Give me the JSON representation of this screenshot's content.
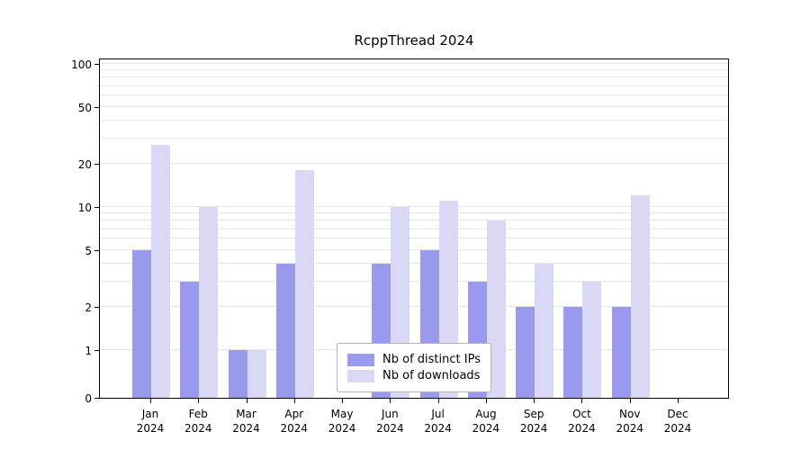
{
  "title": "RcppThread 2024",
  "chart_data": {
    "type": "bar",
    "title": "RcppThread 2024",
    "year_label": "2024",
    "categories": [
      "Jan",
      "Feb",
      "Mar",
      "Apr",
      "May",
      "Jun",
      "Jul",
      "Aug",
      "Sep",
      "Oct",
      "Nov",
      "Dec"
    ],
    "series": [
      {
        "name": "Nb of distinct IPs",
        "color": "#9999ee",
        "values": [
          5,
          3,
          1,
          4,
          0,
          4,
          5,
          3,
          2,
          2,
          2,
          0
        ]
      },
      {
        "name": "Nb of downloads",
        "color": "#d9d9f6",
        "values": [
          27,
          10,
          1,
          18,
          0,
          10,
          11,
          8,
          4,
          3,
          12,
          0
        ]
      }
    ],
    "yticks": [
      0,
      1,
      2,
      5,
      10,
      20,
      50,
      100
    ],
    "grid_values": [
      1,
      2,
      3,
      4,
      5,
      6,
      7,
      8,
      9,
      10,
      20,
      30,
      40,
      50,
      60,
      70,
      80,
      90,
      100
    ],
    "ylim": [
      0,
      100
    ],
    "yscale": "log (zero pinned at baseline)",
    "grid": "horizontal",
    "legend_position": "bottom-center"
  },
  "colors": {
    "background": "#ffffff",
    "axis": "#000000",
    "gridline": "#e6e6e6",
    "legend_border": "#b3b3b3"
  }
}
